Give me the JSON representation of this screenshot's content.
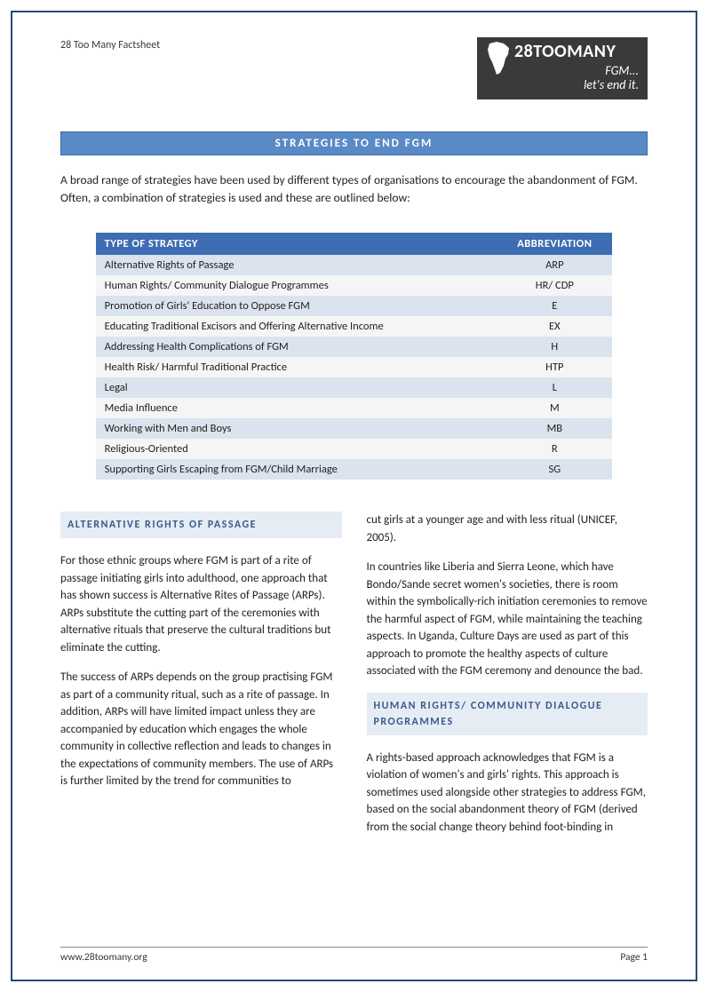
{
  "header": {
    "left_text": "28 Too Many Factsheet",
    "logo": {
      "main": "28TOOMANY",
      "sub_line1": "FGM...",
      "sub_line2": "let's end it."
    }
  },
  "title_bar": "STRATEGIES TO END FGM",
  "intro": "A broad range of strategies have been used by different types of organisations to encourage the abandonment of FGM. Often, a combination of strategies is used and these are outlined below:",
  "table": {
    "col_type": "TYPE OF STRATEGY",
    "col_abbr": "ABBREVIATION",
    "rows": [
      {
        "type": "Alternative Rights of Passage",
        "abbr": "ARP"
      },
      {
        "type": "Human Rights/ Community Dialogue Programmes",
        "abbr": "HR/ CDP"
      },
      {
        "type": "Promotion of Girls' Education to Oppose FGM",
        "abbr": "E"
      },
      {
        "type": "Educating Traditional Excisors and Offering Alternative Income",
        "abbr": "EX"
      },
      {
        "type": "Addressing Health Complications of FGM",
        "abbr": "H"
      },
      {
        "type": "Health Risk/ Harmful Traditional Practice",
        "abbr": "HTP"
      },
      {
        "type": "Legal",
        "abbr": "L"
      },
      {
        "type": "Media Influence",
        "abbr": "M"
      },
      {
        "type": "Working with Men and Boys",
        "abbr": "MB"
      },
      {
        "type": "Religious-Oriented",
        "abbr": "R"
      },
      {
        "type": "Supporting Girls Escaping from FGM/Child Marriage",
        "abbr": "SG"
      }
    ]
  },
  "sections": {
    "arp_heading": "ALTERNATIVE RIGHTS OF PASSAGE",
    "arp_p1": "For those ethnic groups where FGM is part of a rite of passage initiating girls into adulthood, one approach that has shown success is Alternative Rites of Passage (ARPs). ARPs substitute the cutting part of the ceremonies with alternative rituals that preserve the cultural traditions but eliminate the cutting.",
    "arp_p2": "The success of ARPs depends on the group practising FGM as part of a community ritual, such as a rite of passage. In addition, ARPs will have limited impact unless they are accompanied by education which engages the whole community in collective reflection and leads to changes in the expectations of community members. The use of ARPs is further limited by the trend for communities to",
    "col2_p1": "cut girls at a younger age and with less ritual (UNICEF, 2005).",
    "col2_p2": "In countries like Liberia and Sierra Leone, which have Bondo/Sande secret women's societies, there is room within the symbolically-rich initiation ceremonies to remove the harmful aspect of FGM, while maintaining the teaching aspects. In Uganda, Culture Days are used as part of this approach to promote the healthy aspects of culture associated with the FGM ceremony and denounce the bad.",
    "hr_heading": "HUMAN RIGHTS/ COMMUNITY DIALOGUE PROGRAMMES",
    "hr_p1": "A rights-based approach acknowledges that FGM is a violation of women's and girls' rights. This approach is sometimes used alongside other strategies to address FGM, based on the social abandonment theory of FGM (derived from the social change theory behind foot-binding in"
  },
  "footer": {
    "url": "www.28toomany.org",
    "page": "Page 1"
  },
  "style": {
    "accent": "#5a8ac6",
    "table_header_bg": "#3d6db3",
    "row_odd_bg": "#dbe3ef",
    "row_even_bg": "#f5f5f5",
    "sec_head_bg": "#e6ecf4",
    "sec_head_color": "#3a5a8a",
    "border_color": "#2a4a7a"
  }
}
